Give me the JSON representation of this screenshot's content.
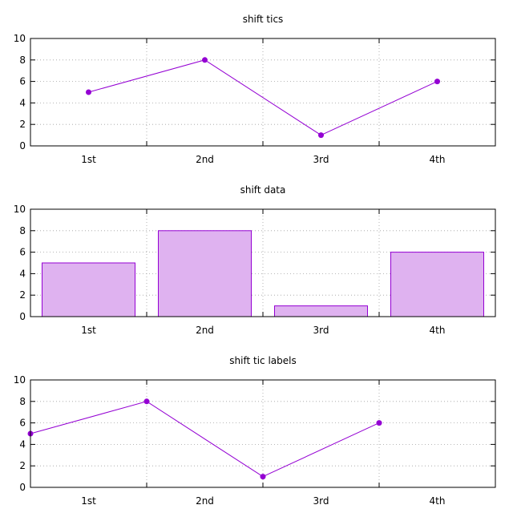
{
  "colors": {
    "series": "#9400d3",
    "bar_fill": "#dfb2f0",
    "grid": "#a0a0a0",
    "axis": "#000000"
  },
  "chart_data": [
    {
      "type": "line",
      "title": "shift tics",
      "categories": [
        "1st",
        "2nd",
        "3rd",
        "4th"
      ],
      "values": [
        5,
        8,
        1,
        6
      ],
      "marker": "circle",
      "ylim": [
        0,
        10
      ],
      "yticks": [
        0,
        2,
        4,
        6,
        8,
        10
      ],
      "xlim": [
        0,
        4
      ],
      "xtick_marks": [
        1,
        2,
        3
      ],
      "point_x": [
        0.5,
        1.5,
        2.5,
        3.5
      ],
      "label_x": [
        0.5,
        1.5,
        2.5,
        3.5
      ],
      "grid": true,
      "legend": "none"
    },
    {
      "type": "bar",
      "title": "shift data",
      "categories": [
        "1st",
        "2nd",
        "3rd",
        "4th"
      ],
      "values": [
        5,
        8,
        1,
        6
      ],
      "ylim": [
        0,
        10
      ],
      "yticks": [
        0,
        2,
        4,
        6,
        8,
        10
      ],
      "xlim": [
        0,
        4
      ],
      "xtick_marks": [
        1,
        2,
        3
      ],
      "point_x": [
        0.5,
        1.5,
        2.5,
        3.5
      ],
      "label_x": [
        0.5,
        1.5,
        2.5,
        3.5
      ],
      "bar_width": 0.8,
      "grid": true,
      "legend": "none"
    },
    {
      "type": "line",
      "title": "shift tic labels",
      "categories": [
        "1st",
        "2nd",
        "3rd",
        "4th"
      ],
      "values": [
        5,
        8,
        1,
        6
      ],
      "marker": "circle",
      "ylim": [
        0,
        10
      ],
      "yticks": [
        0,
        2,
        4,
        6,
        8,
        10
      ],
      "xlim": [
        0,
        4
      ],
      "xtick_marks": [
        1,
        2,
        3
      ],
      "point_x": [
        0,
        1,
        2,
        3
      ],
      "label_x": [
        0.5,
        1.5,
        2.5,
        3.5
      ],
      "grid": true,
      "legend": "none"
    }
  ]
}
